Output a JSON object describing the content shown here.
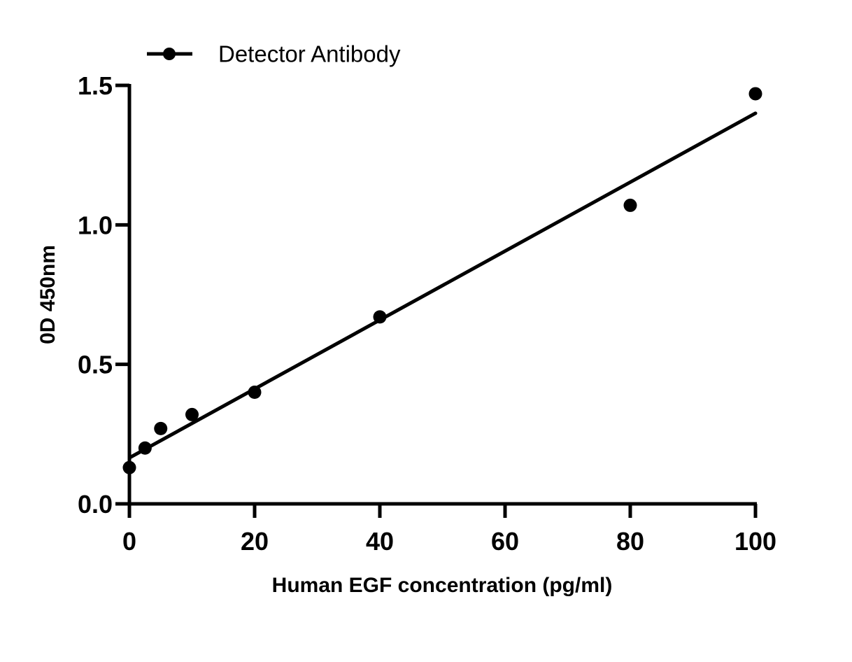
{
  "chart_data": {
    "type": "scatter",
    "title": "",
    "xlabel": "Human EGF concentration (pg/ml)",
    "ylabel": "0D 450nm",
    "xlim": [
      0,
      100
    ],
    "ylim": [
      0,
      1.5
    ],
    "x_ticks": [
      0,
      20,
      40,
      60,
      80,
      100
    ],
    "x_tick_labels": [
      "0",
      "20",
      "40",
      "60",
      "80",
      "100"
    ],
    "y_ticks": [
      0,
      0.5,
      1.0,
      1.5
    ],
    "y_tick_labels": [
      "0.0",
      "0.5",
      "1.0",
      "1.5"
    ],
    "grid": false,
    "legend_position": "top-left",
    "series": [
      {
        "name": "Detector Antibody",
        "marker": "filled-circle",
        "color": "#000000",
        "x": [
          0,
          2.5,
          5,
          10,
          20,
          40,
          80,
          100
        ],
        "y": [
          0.13,
          0.2,
          0.27,
          0.32,
          0.4,
          0.67,
          1.07,
          1.47
        ],
        "fit_line": {
          "type": "linear",
          "x": [
            0,
            100
          ],
          "y": [
            0.165,
            1.4
          ]
        }
      }
    ]
  },
  "legend": {
    "label": "Detector Antibody"
  },
  "axes": {
    "x_title": "Human EGF concentration (pg/ml)",
    "y_title": "0D 450nm"
  }
}
